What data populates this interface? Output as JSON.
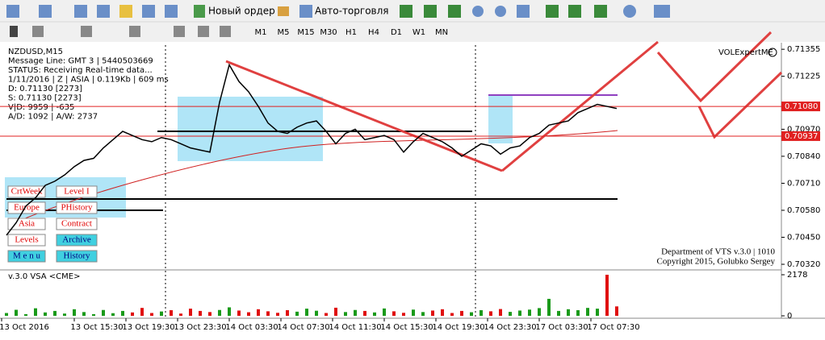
{
  "toolbar": {
    "new_order": "Новый ордер",
    "auto_trading": "Авто-торговля",
    "timeframes": [
      "M1",
      "M5",
      "M15",
      "M30",
      "H1",
      "H4",
      "D1",
      "W1",
      "MN"
    ]
  },
  "info_lines": [
    "NZDUSD,M15",
    "Message Line: GMT 3 | 5440503669",
    "STATUS:  Receiving Real-time data...",
    "1/11/2016 | Z | ASIA | 0.119Kb | 609 ms",
    "D: 0.71130 [2273]",
    "S: 0.71130 [2273]",
    "V|D: 9959 | -635",
    "A/D: 1092 | A/W: 2737"
  ],
  "buttons": [
    [
      "CrtWeek",
      "Level I"
    ],
    [
      "Europe",
      "PHistory"
    ],
    [
      "Asia",
      "Contract"
    ],
    [
      "Levels",
      "Archive"
    ],
    [
      "M e n u",
      "History"
    ]
  ],
  "indicator_name": "VOLExpertME",
  "footer": [
    "Department of VTS  v.3.0 | 1010",
    "Copyright 2015, Golubko Sergey"
  ],
  "chart_data": [
    {
      "type": "line",
      "color": "#000000",
      "values": [
        0.7046,
        0.7052,
        0.706,
        0.7064,
        0.707,
        0.7072,
        0.7075,
        0.7079,
        0.7082,
        0.7083,
        0.7088,
        0.7092,
        0.7096,
        0.7094,
        0.7092,
        0.7091,
        0.7093,
        0.7092,
        0.709,
        0.7088,
        0.7087,
        0.7086,
        0.711,
        0.7128,
        0.712,
        0.7115,
        0.7108,
        0.71,
        0.7096,
        0.7095,
        0.7098,
        0.71,
        0.7101,
        0.7096,
        0.709,
        0.7095,
        0.7097,
        0.7092,
        0.7093,
        0.7094,
        0.7092,
        0.7086,
        0.7091,
        0.7095,
        0.7093,
        0.7091,
        0.7088,
        0.7084,
        0.7087,
        0.709,
        0.7089,
        0.7085,
        0.7088,
        0.7089,
        0.7093,
        0.7095,
        0.7099,
        0.71,
        0.7101,
        0.7105,
        0.7107,
        0.7109,
        0.7108,
        0.7107
      ],
      "ylim": [
        0.70293,
        0.71375
      ],
      "yticks": [
        0.71355,
        0.71225,
        {
          "value": 0.7097,
          "label": "0.70970"
        },
        {
          "value": 0.7084,
          "label": "0.70840"
        },
        {
          "value": 0.7071,
          "label": "0.70710"
        },
        {
          "value": 0.7058,
          "label": "0.70580"
        },
        {
          "value": 0.7045,
          "label": "0.70450"
        },
        {
          "value": 0.7032,
          "label": "0.70320"
        }
      ],
      "levels": [
        {
          "value": 0.7108,
          "label": "0.71080"
        },
        {
          "value": 0.70937,
          "label": "0.70937"
        }
      ],
      "level_color": "#e02020",
      "xtick_labels": [
        "13 Oct 2016",
        "13 Oct 15:30",
        "13 Oct 19:30",
        "13 Oct 23:30",
        "14 Oct 03:30",
        "14 Oct 07:30",
        "14 Oct 11:30",
        "14 Oct 15:30",
        "14 Oct 19:30",
        "14 Oct 23:30",
        "17 Oct 03:30",
        "17 Oct 07:30"
      ]
    },
    {
      "type": "bar",
      "title": "v.3.0 VSA <CME>",
      "up_color": "#1a9a1a",
      "down_color": "#e01010",
      "values": [
        150,
        320,
        90,
        400,
        180,
        260,
        120,
        350,
        200,
        90,
        310,
        140,
        260,
        180,
        420,
        150,
        230,
        300,
        120,
        380,
        260,
        200,
        310,
        450,
        280,
        190,
        350,
        240,
        160,
        300,
        220,
        380,
        270,
        150,
        430,
        200,
        310,
        260,
        180,
        390,
        240,
        160,
        330,
        200,
        280,
        350,
        150,
        260,
        190,
        300,
        240,
        360,
        210,
        280,
        330,
        410,
        900,
        260,
        350,
        300,
        420,
        380,
        2178,
        500
      ],
      "ylim": [
        0,
        2178
      ],
      "yticks": [
        2178,
        0
      ]
    }
  ]
}
